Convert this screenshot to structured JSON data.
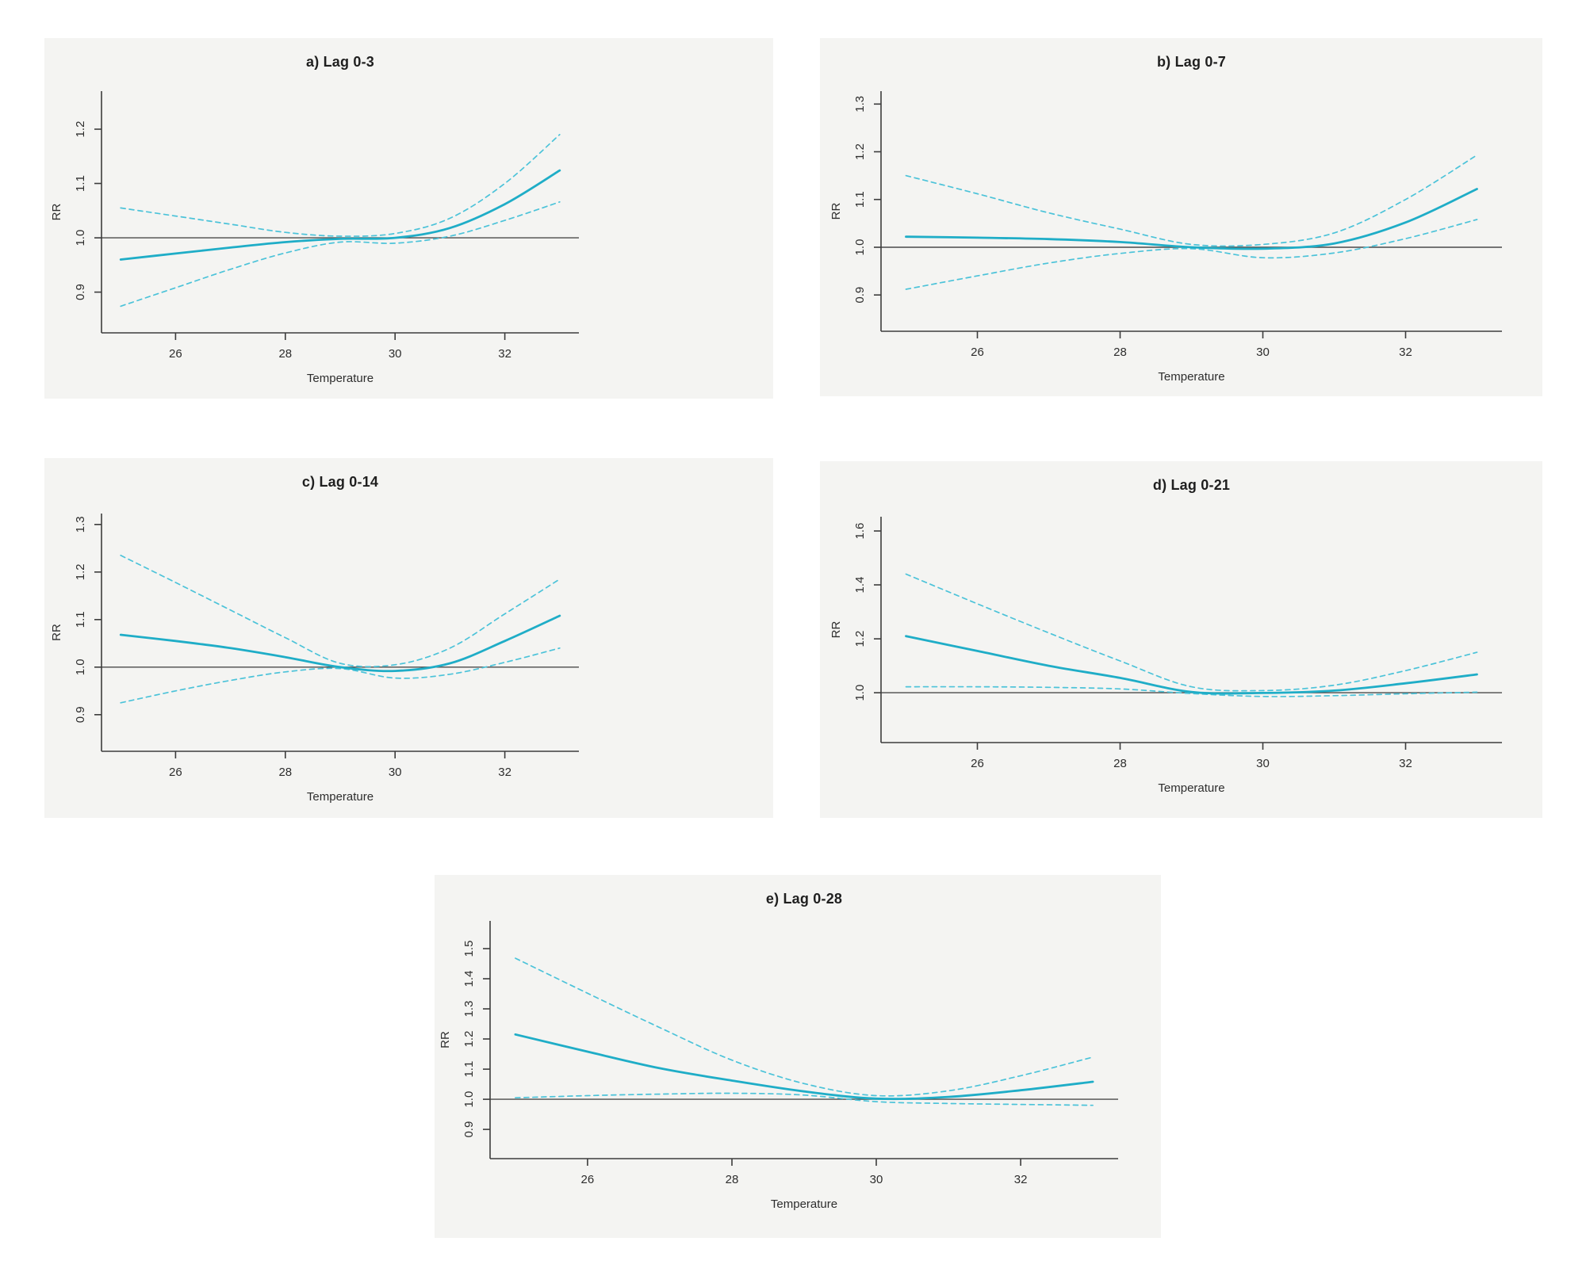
{
  "page": {
    "background_color": "#ffffff",
    "panel_background_color": "#f4f4f2"
  },
  "styles": {
    "solid_line_color": "#1fadc7",
    "dashed_line_color": "#4cc3d9",
    "reference_line_color": "#4a4a4a",
    "axis_color": "#3c3c3c",
    "text_color": "#2d2d2d"
  },
  "chart_data": [
    {
      "id": "a",
      "type": "line",
      "title": "a) Lag 0-3",
      "xlabel": "Temperature",
      "ylabel": "RR",
      "x": [
        25,
        26,
        27,
        28,
        29,
        30,
        31,
        32,
        33
      ],
      "xticks": [
        26,
        28,
        30,
        32
      ],
      "yticks": [
        0.9,
        1.0,
        1.1,
        1.2
      ],
      "xlim": [
        24.65,
        33.35
      ],
      "ylim": [
        0.825,
        1.27
      ],
      "reference_rr": 1.0,
      "series": [
        {
          "name": "estimate",
          "style": "solid",
          "values": [
            0.96,
            0.971,
            0.982,
            0.992,
            0.998,
            1.0,
            1.018,
            1.062,
            1.124
          ]
        },
        {
          "name": "upper-ci",
          "style": "dashed",
          "values": [
            1.055,
            1.04,
            1.025,
            1.01,
            1.003,
            1.008,
            1.036,
            1.1,
            1.19
          ]
        },
        {
          "name": "lower-ci",
          "style": "dashed",
          "values": [
            0.874,
            0.908,
            0.942,
            0.972,
            0.992,
            0.99,
            1.003,
            1.032,
            1.066
          ]
        }
      ]
    },
    {
      "id": "b",
      "type": "line",
      "title": "b) Lag 0-7",
      "xlabel": "Temperature",
      "ylabel": "RR",
      "x": [
        25,
        26,
        27,
        28,
        29,
        30,
        31,
        32,
        33
      ],
      "xticks": [
        26,
        28,
        30,
        32
      ],
      "yticks": [
        0.9,
        1.0,
        1.1,
        1.2,
        1.3
      ],
      "xlim": [
        24.65,
        33.35
      ],
      "ylim": [
        0.824,
        1.327
      ],
      "reference_rr": 1.0,
      "series": [
        {
          "name": "estimate",
          "style": "solid",
          "values": [
            1.022,
            1.02,
            1.017,
            1.011,
            1.0,
            0.997,
            1.008,
            1.052,
            1.122
          ]
        },
        {
          "name": "upper-ci",
          "style": "dashed",
          "values": [
            1.15,
            1.112,
            1.072,
            1.038,
            1.006,
            1.006,
            1.03,
            1.1,
            1.193
          ]
        },
        {
          "name": "lower-ci",
          "style": "dashed",
          "values": [
            0.912,
            0.94,
            0.967,
            0.987,
            0.997,
            0.978,
            0.988,
            1.018,
            1.058
          ]
        }
      ]
    },
    {
      "id": "c",
      "type": "line",
      "title": "c) Lag 0-14",
      "xlabel": "Temperature",
      "ylabel": "RR",
      "x": [
        25,
        26,
        27,
        28,
        29,
        30,
        31,
        32,
        33
      ],
      "xticks": [
        26,
        28,
        30,
        32
      ],
      "yticks": [
        0.9,
        1.0,
        1.1,
        1.2,
        1.3
      ],
      "xlim": [
        24.65,
        33.35
      ],
      "ylim": [
        0.823,
        1.323
      ],
      "reference_rr": 1.0,
      "series": [
        {
          "name": "estimate",
          "style": "solid",
          "values": [
            1.068,
            1.055,
            1.04,
            1.021,
            1.0,
            0.992,
            1.008,
            1.055,
            1.108
          ]
        },
        {
          "name": "upper-ci",
          "style": "dashed",
          "values": [
            1.235,
            1.178,
            1.12,
            1.062,
            1.008,
            1.005,
            1.04,
            1.112,
            1.185
          ]
        },
        {
          "name": "lower-ci",
          "style": "dashed",
          "values": [
            0.925,
            0.95,
            0.972,
            0.99,
            0.997,
            0.977,
            0.985,
            1.01,
            1.04
          ]
        }
      ]
    },
    {
      "id": "d",
      "type": "line",
      "title": "d) Lag 0-21",
      "xlabel": "Temperature",
      "ylabel": "RR",
      "x": [
        25,
        26,
        27,
        28,
        29,
        30,
        31,
        32,
        33
      ],
      "xticks": [
        26,
        28,
        30,
        32
      ],
      "yticks": [
        1.0,
        1.2,
        1.4,
        1.6
      ],
      "xlim": [
        24.65,
        33.35
      ],
      "ylim": [
        0.815,
        1.653
      ],
      "reference_rr": 1.0,
      "series": [
        {
          "name": "estimate",
          "style": "solid",
          "values": [
            1.21,
            1.155,
            1.1,
            1.055,
            1.003,
            0.999,
            1.008,
            1.035,
            1.068
          ]
        },
        {
          "name": "upper-ci",
          "style": "dashed",
          "values": [
            1.44,
            1.33,
            1.222,
            1.118,
            1.022,
            1.008,
            1.028,
            1.082,
            1.15
          ]
        },
        {
          "name": "lower-ci",
          "style": "dashed",
          "values": [
            1.022,
            1.022,
            1.02,
            1.014,
            0.997,
            0.986,
            0.989,
            0.996,
            1.002
          ]
        }
      ]
    },
    {
      "id": "e",
      "type": "line",
      "title": "e) Lag 0-28",
      "xlabel": "Temperature",
      "ylabel": "RR",
      "x": [
        25,
        26,
        27,
        28,
        29,
        30,
        31,
        32,
        33
      ],
      "xticks": [
        26,
        28,
        30,
        32
      ],
      "yticks": [
        0.9,
        1.0,
        1.1,
        1.2,
        1.3,
        1.4,
        1.5
      ],
      "xlim": [
        24.65,
        33.35
      ],
      "ylim": [
        0.803,
        1.592
      ],
      "reference_rr": 1.0,
      "series": [
        {
          "name": "estimate",
          "style": "solid",
          "values": [
            1.215,
            1.158,
            1.103,
            1.062,
            1.026,
            1.002,
            1.008,
            1.03,
            1.058
          ]
        },
        {
          "name": "upper-ci",
          "style": "dashed",
          "values": [
            1.468,
            1.352,
            1.238,
            1.13,
            1.052,
            1.012,
            1.028,
            1.078,
            1.14
          ]
        },
        {
          "name": "lower-ci",
          "style": "dashed",
          "values": [
            1.005,
            1.012,
            1.017,
            1.02,
            1.014,
            0.992,
            0.986,
            0.983,
            0.98
          ]
        }
      ]
    }
  ]
}
